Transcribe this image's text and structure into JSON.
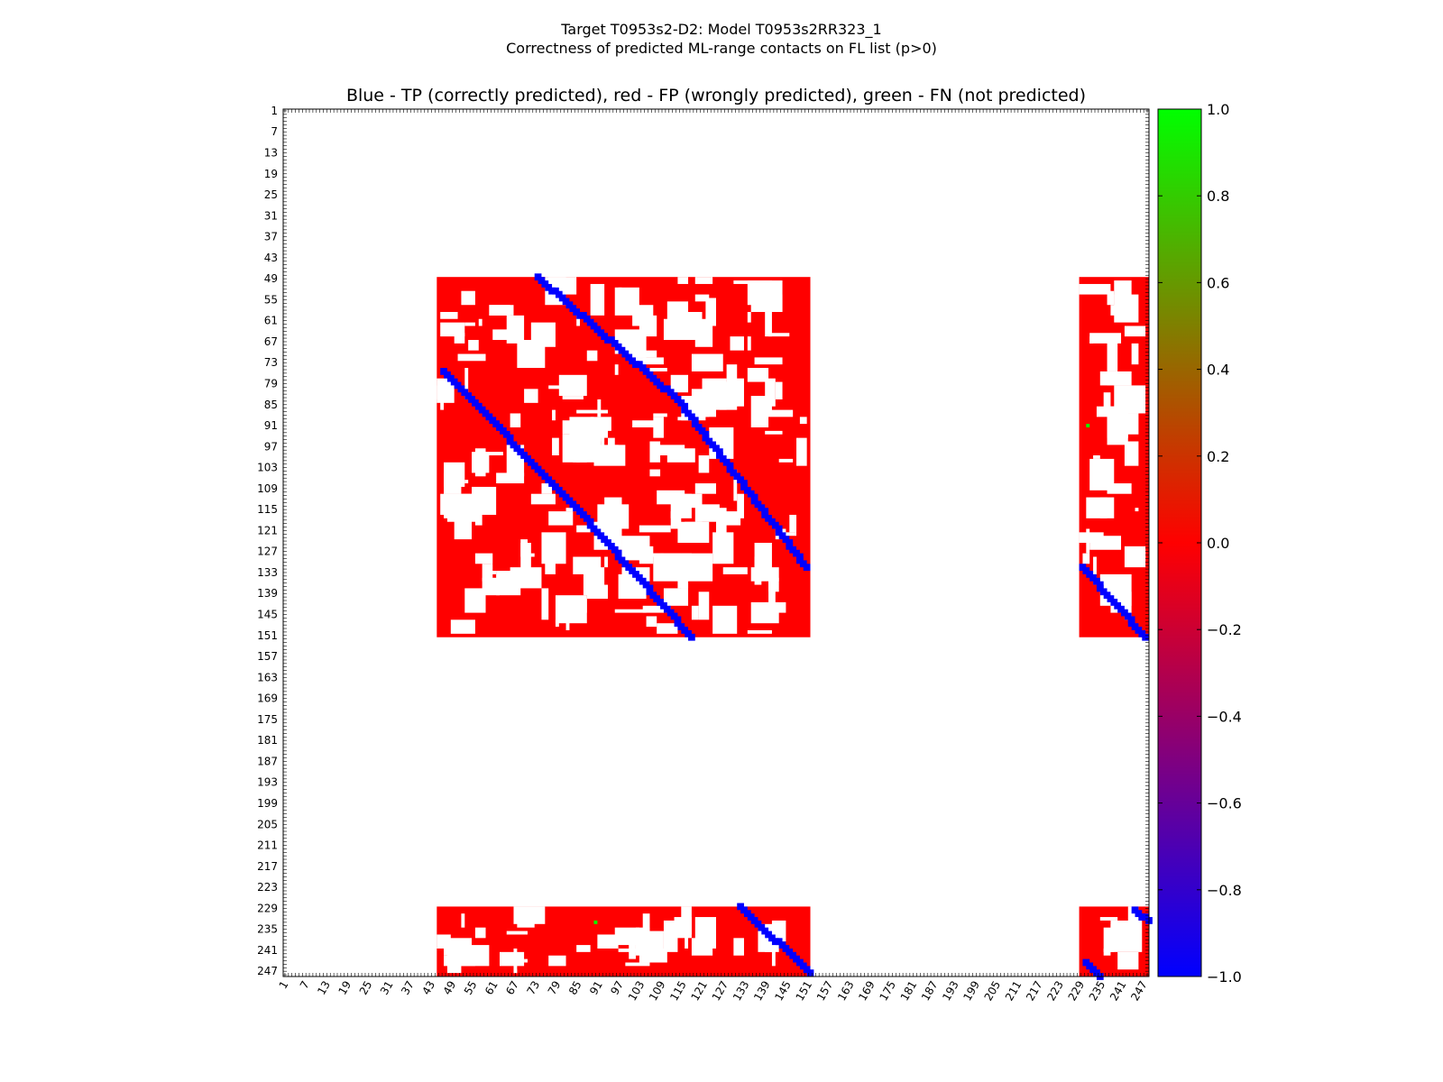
{
  "figure": {
    "title_line1": "Target T0953s2-D2: Model T0953s2RR323_1",
    "title_line2": "Correctness of predicted ML-range contacts on FL list (p>0)",
    "axes_title": "Blue - TP (correctly predicted), red - FP (wrongly predicted), green - FN (not predicted)"
  },
  "chart_data": {
    "type": "heatmap",
    "n_residues": 248,
    "x_tick_labels": [
      "1",
      "7",
      "13",
      "19",
      "25",
      "31",
      "37",
      "43",
      "49",
      "55",
      "61",
      "67",
      "73",
      "79",
      "85",
      "91",
      "97",
      "103",
      "109",
      "115",
      "121",
      "127",
      "133",
      "139",
      "145",
      "151",
      "157",
      "163",
      "169",
      "175",
      "181",
      "187",
      "193",
      "199",
      "205",
      "211",
      "217",
      "223",
      "229",
      "235",
      "241",
      "247"
    ],
    "y_tick_labels": [
      "1",
      "7",
      "13",
      "19",
      "25",
      "31",
      "37",
      "43",
      "49",
      "55",
      "61",
      "67",
      "73",
      "79",
      "85",
      "91",
      "97",
      "103",
      "109",
      "115",
      "121",
      "127",
      "133",
      "139",
      "145",
      "151",
      "157",
      "163",
      "169",
      "175",
      "181",
      "187",
      "193",
      "199",
      "205",
      "211",
      "217",
      "223",
      "229",
      "235",
      "241",
      "247"
    ],
    "colorbar": {
      "min": -1.0,
      "max": 1.0,
      "tick_labels": [
        "1.0",
        "0.8",
        "0.6",
        "0.4",
        "0.2",
        "0.0",
        "−0.2",
        "−0.4",
        "−0.6",
        "−0.8",
        "−1.0"
      ],
      "colors": {
        "low": "#0000ff",
        "mid": "#ff0000",
        "high": "#00ff00"
      }
    },
    "value_legend": {
      "TP": -1.0,
      "FP": 0.0,
      "FN": 1.0
    },
    "fp_regions": [
      {
        "rows": [
          49,
          151
        ],
        "cols": [
          45,
          151
        ]
      },
      {
        "rows": [
          49,
          151
        ],
        "cols": [
          229,
          248
        ]
      },
      {
        "rows": [
          229,
          248
        ],
        "cols": [
          45,
          151
        ]
      },
      {
        "rows": [
          229,
          248
        ],
        "cols": [
          229,
          248
        ]
      }
    ],
    "tp_segments": [
      {
        "start": [
          48,
          73
        ],
        "end": [
          83,
          113
        ]
      },
      {
        "start": [
          83,
          113
        ],
        "end": [
          131,
          150
        ]
      },
      {
        "start": [
          75,
          46
        ],
        "end": [
          114,
          84
        ]
      },
      {
        "start": [
          114,
          84
        ],
        "end": [
          151,
          117
        ]
      },
      {
        "start": [
          131,
          229
        ],
        "end": [
          151,
          247
        ]
      },
      {
        "start": [
          228,
          131
        ],
        "end": [
          247,
          151
        ]
      },
      {
        "start": [
          229,
          244
        ],
        "end": [
          232,
          248
        ]
      },
      {
        "start": [
          244,
          230
        ],
        "end": [
          248,
          234
        ]
      }
    ],
    "fn_points": [
      [
        91,
        231
      ],
      [
        233,
        90
      ]
    ]
  }
}
